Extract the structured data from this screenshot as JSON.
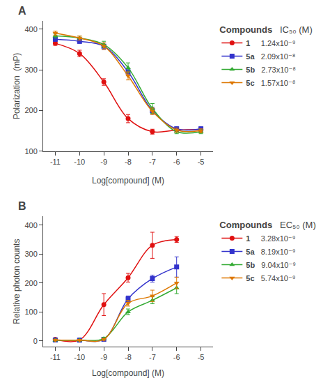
{
  "chart_data": [
    {
      "type": "line",
      "title": "A",
      "x_label": "Log[compound] (M)",
      "y_label": "Polarization  (mP)",
      "xlim": [
        -11.5,
        -4.5
      ],
      "xticks": [
        -11,
        -10,
        -9,
        -8,
        -7,
        -6,
        -5
      ],
      "ylim": [
        100,
        420
      ],
      "yticks": [
        100,
        200,
        300,
        400
      ],
      "grid": false,
      "legend_title": "Compounds",
      "value_title": "IC₅₀ (M)",
      "x": [
        -11,
        -10,
        -9,
        -8,
        -7,
        -6,
        -5
      ],
      "series": [
        {
          "name": "1",
          "value_label": "1.24x10⁻⁹",
          "color": "#e01010",
          "marker": "circle",
          "line_style": "solid",
          "values": [
            365,
            340,
            270,
            180,
            148,
            152,
            153
          ],
          "yerr": [
            5,
            8,
            8,
            10,
            6,
            5,
            5
          ]
        },
        {
          "name": "5a",
          "value_label": "2.09x10⁻⁸",
          "color": "#3333cc",
          "marker": "square",
          "line_style": "solid",
          "values": [
            375,
            370,
            358,
            295,
            200,
            155,
            155
          ],
          "yerr": [
            5,
            5,
            8,
            8,
            8,
            5,
            5
          ]
        },
        {
          "name": "5b",
          "value_label": "2.73x10⁻⁸",
          "color": "#33aa33",
          "marker": "triangle-up",
          "line_style": "solid",
          "values": [
            383,
            378,
            362,
            305,
            205,
            148,
            148
          ],
          "yerr": [
            5,
            5,
            8,
            12,
            12,
            5,
            5
          ]
        },
        {
          "name": "5c",
          "value_label": "1.57x10⁻⁸",
          "color": "#dd7700",
          "marker": "triangle-down",
          "line_style": "solid",
          "values": [
            390,
            378,
            358,
            285,
            198,
            152,
            150
          ],
          "yerr": [
            5,
            5,
            8,
            10,
            8,
            5,
            5
          ]
        }
      ]
    },
    {
      "type": "line",
      "title": "B",
      "x_label": "Log[compound] (M)",
      "y_label": "Relative photon counts",
      "xlim": [
        -11.5,
        -4.5
      ],
      "xticks": [
        -11,
        -10,
        -9,
        -8,
        -7,
        -6,
        -5
      ],
      "ylim": [
        -20,
        430
      ],
      "yticks": [
        0,
        100,
        200,
        300,
        400
      ],
      "grid": false,
      "legend_title": "Compounds",
      "value_title": "EC₅₀ (M)",
      "x": [
        -11,
        -10,
        -9,
        -8,
        -7,
        -6
      ],
      "series": [
        {
          "name": "1",
          "value_label": "3.28x10⁻⁹",
          "color": "#e01010",
          "marker": "circle",
          "line_style": "solid",
          "values": [
            5,
            3,
            125,
            218,
            330,
            350
          ],
          "yerr": [
            3,
            2,
            38,
            15,
            45,
            10
          ]
        },
        {
          "name": "5a",
          "value_label": "8.19x10⁻⁹",
          "color": "#3333cc",
          "marker": "square",
          "line_style": "solid",
          "values": [
            3,
            2,
            5,
            145,
            215,
            255
          ],
          "yerr": [
            2,
            2,
            3,
            10,
            12,
            35
          ]
        },
        {
          "name": "5b",
          "value_label": "9.04x10⁻⁹",
          "color": "#33aa33",
          "marker": "triangle-up",
          "line_style": "solid",
          "values": [
            2,
            2,
            8,
            100,
            140,
            183
          ],
          "yerr": [
            2,
            2,
            4,
            10,
            12,
            20
          ]
        },
        {
          "name": "5c",
          "value_label": "5.74x10⁻⁹",
          "color": "#dd7700",
          "marker": "triangle-down",
          "line_style": "solid",
          "values": [
            3,
            2,
            5,
            130,
            155,
            200
          ],
          "yerr": [
            2,
            2,
            3,
            10,
            20,
            20
          ]
        }
      ]
    }
  ]
}
